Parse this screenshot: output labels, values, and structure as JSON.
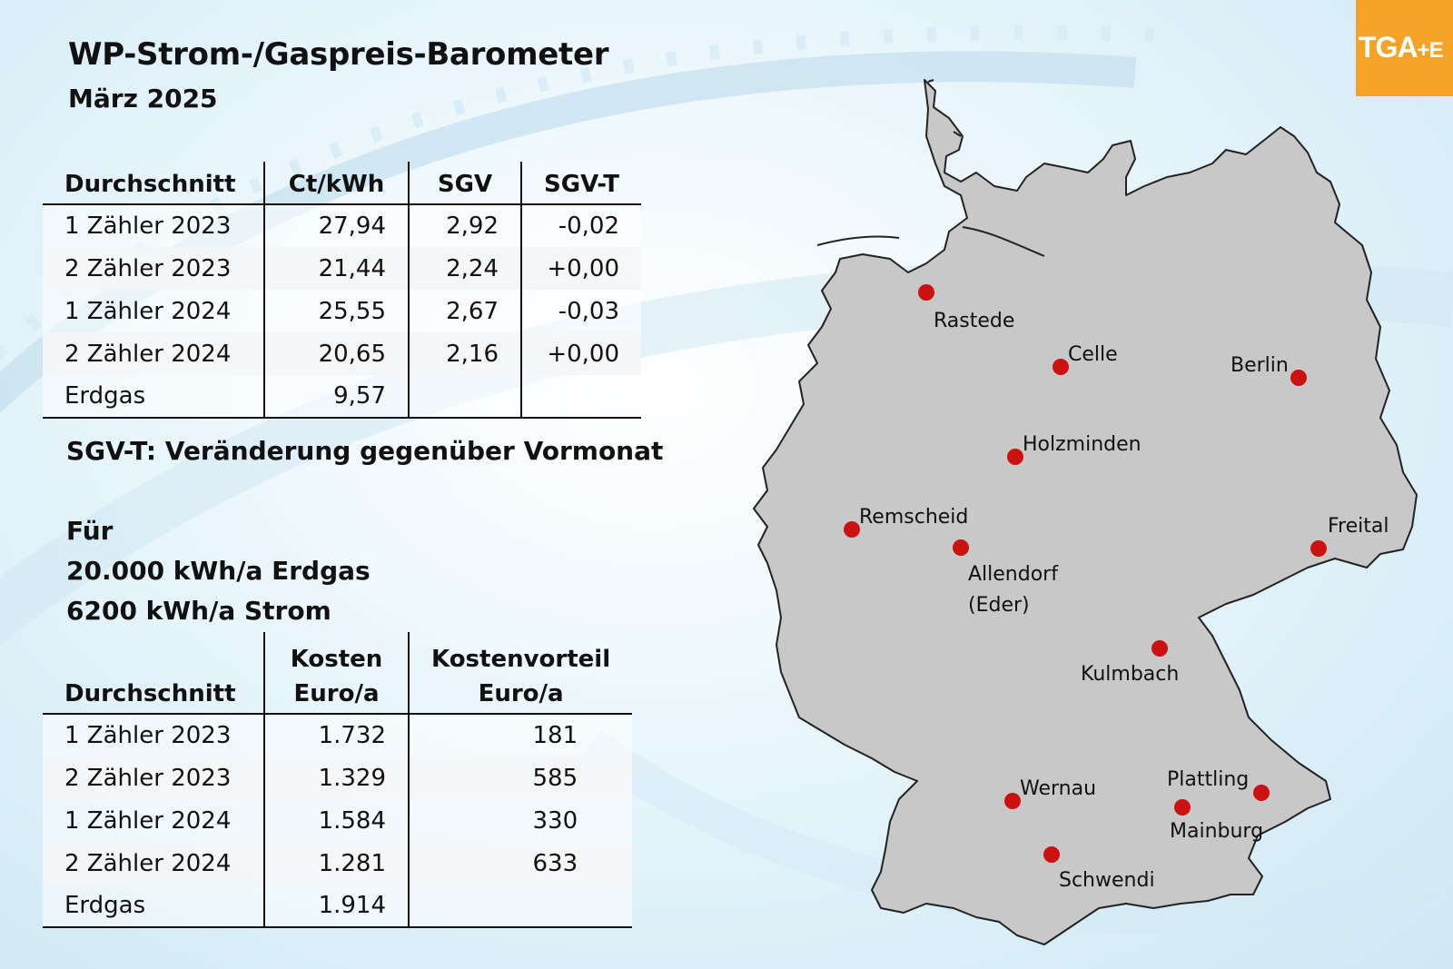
{
  "title": "WP-Strom-/Gaspreis-Barometer",
  "subtitle": "März 2025",
  "logo": {
    "text": "TGA",
    "plus": "+E",
    "color": "#f5a326"
  },
  "table1": {
    "headers": [
      "Durchschnitt",
      "Ct/kWh",
      "SGV",
      "SGV-T"
    ],
    "rows": [
      [
        "1 Zähler 2023",
        "27,94",
        "2,92",
        "-0,02"
      ],
      [
        "2 Zähler 2023",
        "21,44",
        "2,24",
        "+0,00"
      ],
      [
        "1 Zähler 2024",
        "25,55",
        "2,67",
        "-0,03"
      ],
      [
        "2 Zähler 2024",
        "20,65",
        "2,16",
        "+0,00"
      ],
      [
        "Erdgas",
        "9,57",
        "",
        ""
      ]
    ]
  },
  "note": "SGV-T: Veränderung gegenüber Vormonat",
  "info": [
    "Für",
    "20.000 kWh/a Erdgas",
    "6200 kWh/a Strom"
  ],
  "table2": {
    "headers_top": [
      "",
      "Kosten",
      "Kostenvorteil"
    ],
    "headers": [
      "Durchschnitt",
      "Euro/a",
      "Euro/a"
    ],
    "rows": [
      [
        "1 Zähler 2023",
        "1.732",
        "181"
      ],
      [
        "2 Zähler 2023",
        "1.329",
        "585"
      ],
      [
        "1 Zähler 2024",
        "1.584",
        "330"
      ],
      [
        "2 Zähler 2024",
        "1.281",
        "633"
      ],
      [
        "Erdgas",
        "1.914",
        ""
      ]
    ]
  },
  "map": {
    "land_color": "#c8c8c8",
    "marker_color": "#cc1111",
    "cities": [
      {
        "name": "Rastede"
      },
      {
        "name": "Celle"
      },
      {
        "name": "Berlin"
      },
      {
        "name": "Holzminden"
      },
      {
        "name": "Remscheid"
      },
      {
        "name": "Allendorf",
        "name2": "(Eder)"
      },
      {
        "name": "Freital"
      },
      {
        "name": "Kulmbach"
      },
      {
        "name": "Wernau"
      },
      {
        "name": "Plattling"
      },
      {
        "name": "Mainburg"
      },
      {
        "name": "Schwendi"
      }
    ]
  }
}
